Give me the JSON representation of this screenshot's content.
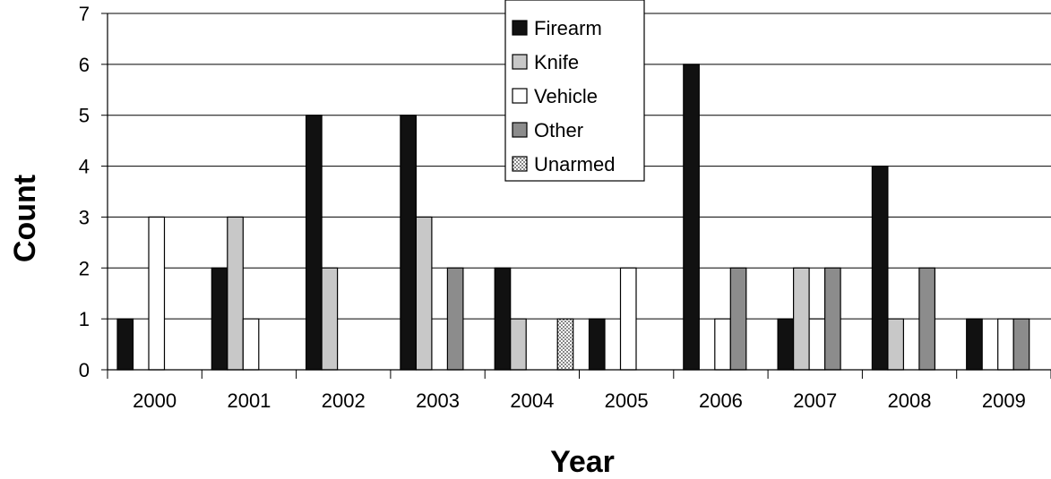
{
  "chart_data": {
    "type": "bar",
    "title": "",
    "xlabel": "Year",
    "ylabel": "Count",
    "ylim": [
      0,
      7
    ],
    "yticks": [
      0,
      1,
      2,
      3,
      4,
      5,
      6,
      7
    ],
    "grid": "horizontal",
    "legend_position": "top-center",
    "categories": [
      "2000",
      "2001",
      "2002",
      "2003",
      "2004",
      "2005",
      "2006",
      "2007",
      "2008",
      "2009"
    ],
    "series": [
      {
        "name": "Firearm",
        "color": "#111111",
        "pattern": "solid",
        "values": [
          1,
          2,
          5,
          5,
          2,
          1,
          6,
          1,
          4,
          1
        ]
      },
      {
        "name": "Knife",
        "color": "#c8c8c8",
        "pattern": "solid",
        "values": [
          0,
          3,
          2,
          3,
          1,
          0,
          0,
          2,
          1,
          0
        ]
      },
      {
        "name": "Vehicle",
        "color": "#ffffff",
        "pattern": "solid",
        "values": [
          3,
          1,
          0,
          0,
          0,
          2,
          1,
          1,
          0,
          1
        ]
      },
      {
        "name": "Other",
        "color": "#8c8c8c",
        "pattern": "solid",
        "values": [
          0,
          0,
          0,
          2,
          0,
          0,
          2,
          2,
          2,
          1
        ]
      },
      {
        "name": "Unarmed",
        "color": "#ffffff",
        "pattern": "dotted",
        "values": [
          0,
          0,
          0,
          0,
          1,
          0,
          0,
          0,
          0,
          0
        ]
      }
    ]
  }
}
